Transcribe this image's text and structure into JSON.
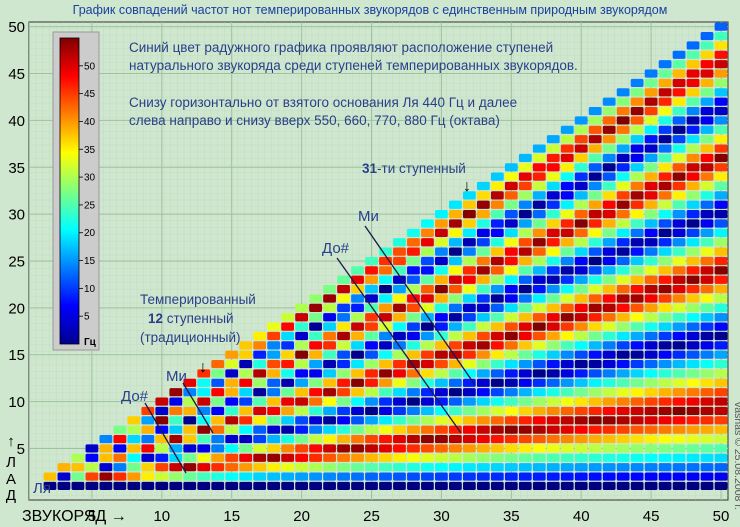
{
  "chart_data": {
    "type": "heatmap",
    "title": "График совпадений частот нот темперированных звукорядов с единственным природным звукорядом",
    "description_lines": [
      "Синий цвет радужного графика проявляют расположение ступеней",
      "натурального звукоряда среди ступеней темперированных звукорядов.",
      "Снизу горизонтально от взятого основания Ля 440 Гц и далее",
      "слева направо и снизу вверх 550, 660, 770, 880 Гц (октава)"
    ],
    "xlabel": "ЗВУКОРЯД →",
    "ylabel_letters": [
      "↑",
      "Л",
      "А",
      "Д"
    ],
    "x_ticks": [
      5,
      10,
      15,
      20,
      25,
      30,
      35,
      40,
      45,
      50
    ],
    "y_ticks": [
      5,
      10,
      15,
      20,
      25,
      30,
      35,
      40,
      45,
      50
    ],
    "xlim": [
      2,
      50
    ],
    "ylim": [
      1,
      50
    ],
    "colorbar": {
      "ticks": [
        5,
        10,
        15,
        20,
        25,
        30,
        35,
        40,
        45,
        50
      ],
      "unit": "Гц",
      "min": 0,
      "max": 55
    },
    "cells": {
      "rule": "for each scale n = 2..50 and each step k = 1..n; row k = 1 (Ля) is dark blue at every n",
      "note": "value = frequency mismatch (Hz) between step k of the n-step equal-tempered scale and the nearest natural-scale frequency"
    },
    "annotations": {
      "temp12_line1": "Темперированный",
      "temp12_line2": "12",
      "temp12_line3": " ступенный",
      "temp12_line4": "(традиционный)",
      "mi_low": "Ми",
      "dosharp_low": "До#",
      "arrow": "↓",
      "step31_num": "31",
      "step31_text": "-ти ступенный",
      "mi_high": "Ми",
      "dosharp_high": "До#",
      "la": "Ля",
      "copyright": "vasnas © 25.08.2008 г."
    }
  }
}
